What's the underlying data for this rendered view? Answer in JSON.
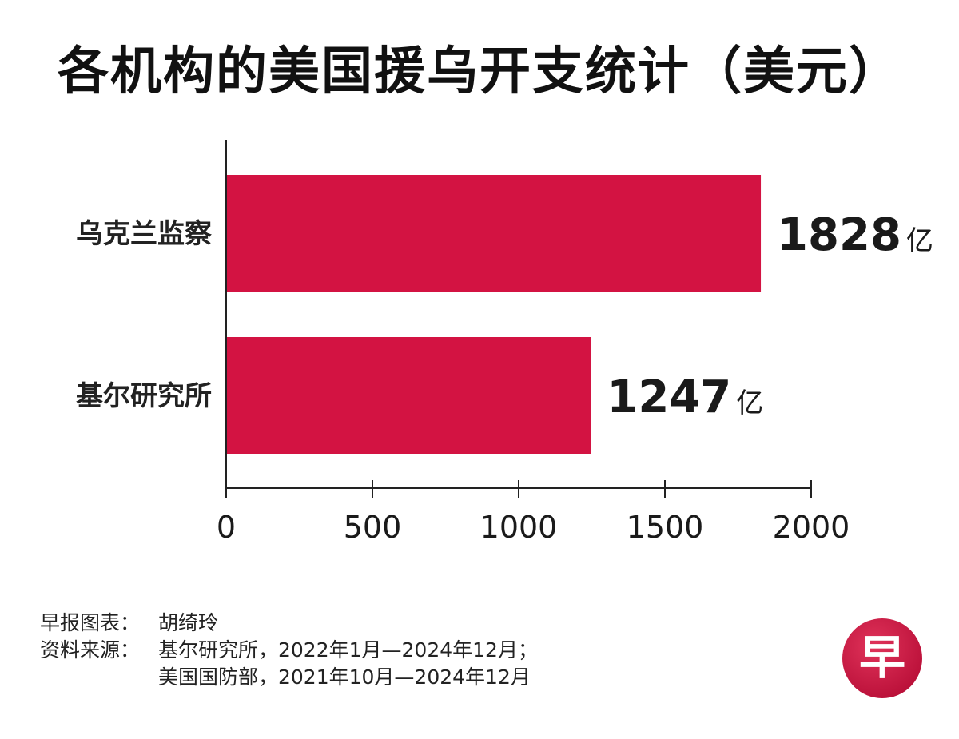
{
  "chart_data": {
    "type": "bar",
    "orientation": "horizontal",
    "title": "各机构的美国援乌开支统计（美元）",
    "categories": [
      "乌克兰监察",
      "基尔研究所"
    ],
    "values": [
      1828,
      1247
    ],
    "value_labels": [
      "1828",
      "1247"
    ],
    "value_unit": "亿",
    "xlim": [
      0,
      2000
    ],
    "xticks": [
      0,
      500,
      1000,
      1500,
      2000
    ],
    "xtick_labels": [
      "0",
      "500",
      "1000",
      "1500",
      "2000"
    ],
    "grid": false,
    "bar_color": "#d31342"
  },
  "footer": {
    "chart_credit_label": "早报图表：",
    "chart_credit_value": "胡绮玲",
    "source_label": "资料来源：",
    "source_line1": "基尔研究所，2022年1月—2024年12月；",
    "source_line2": "美国国防部，2021年10月—2024年12月"
  },
  "logo": {
    "char": "早",
    "color": "#d31342"
  }
}
